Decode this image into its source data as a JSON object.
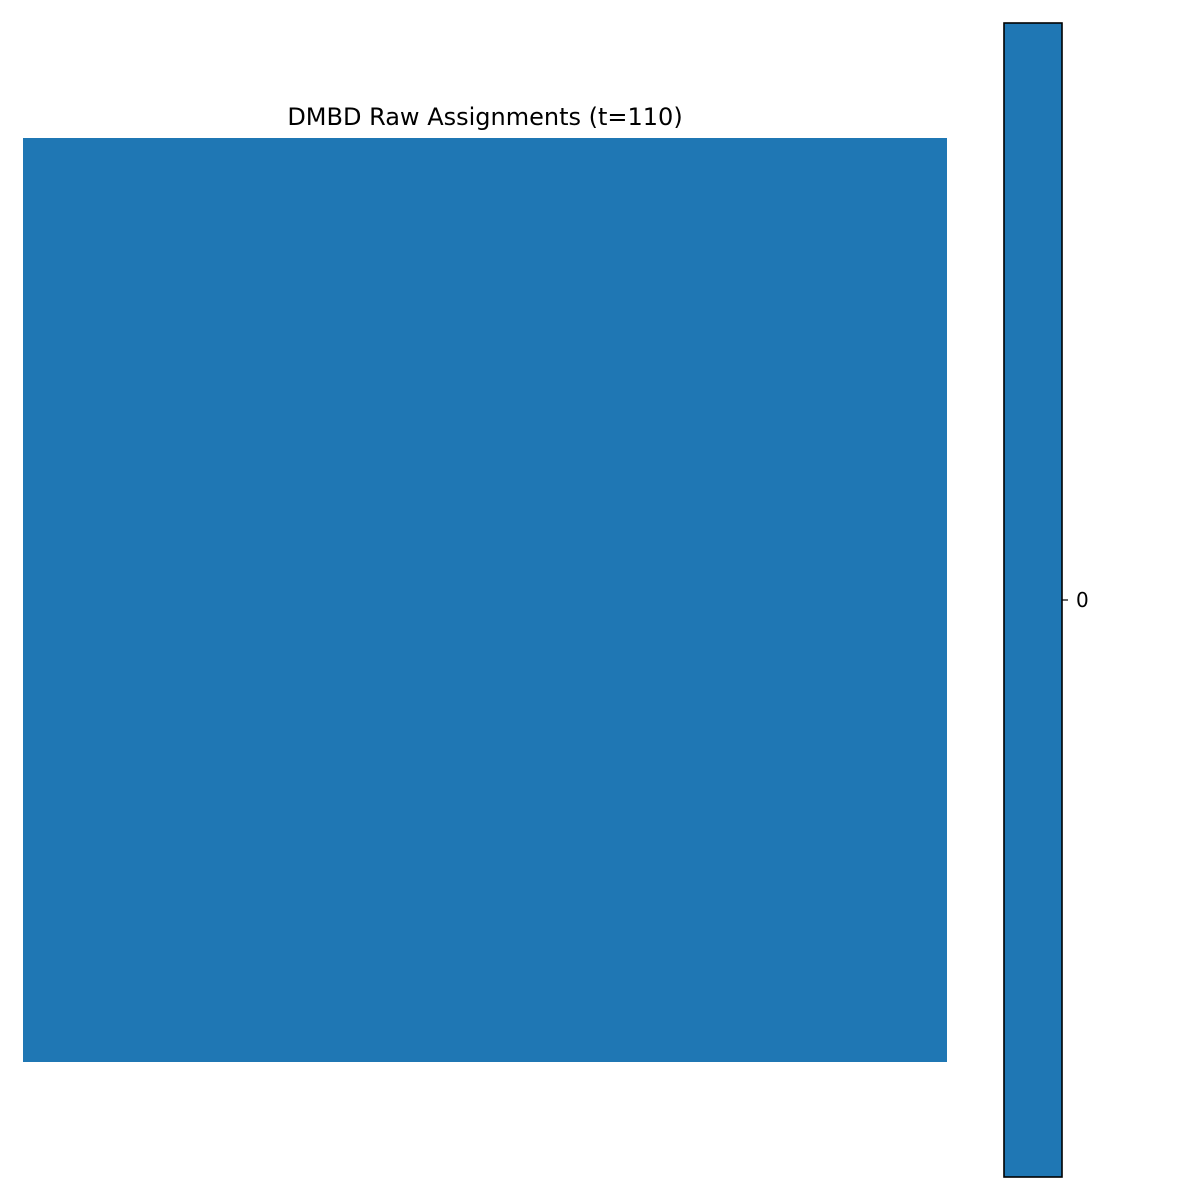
{
  "chart_data": {
    "type": "heatmap",
    "title": "DMBD Raw Assignments (t=110)",
    "xlabel": "",
    "ylabel": "",
    "axes_visible": false,
    "matrix": [
      [
        0
      ]
    ],
    "cell_color": "#1f77b4",
    "colorbar": {
      "orientation": "vertical",
      "placement": "right",
      "color": "#1f77b4",
      "ticks": [
        0
      ],
      "tick_labels": [
        "0"
      ],
      "range": [
        -0.5,
        0.5
      ]
    }
  }
}
